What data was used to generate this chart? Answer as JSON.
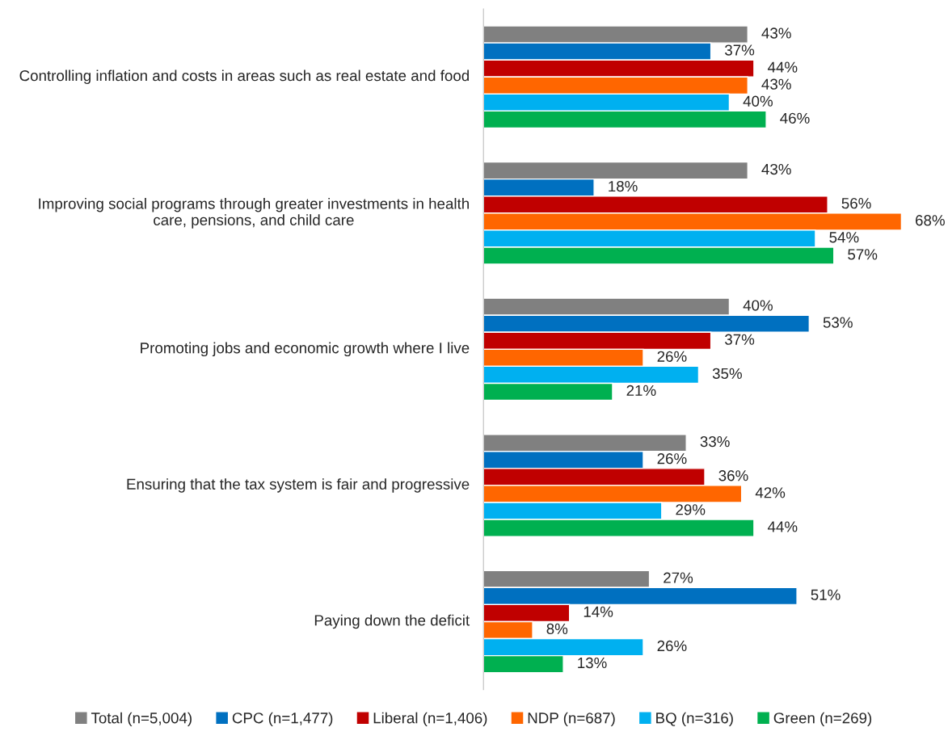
{
  "chart_data": {
    "type": "bar",
    "orientation": "horizontal",
    "tick_labels": "y",
    "legend": "bottom",
    "categories": [
      "Controlling inflation and costs in areas such as real estate and food",
      "Improving social programs through greater investments in health care, pensions, and child care",
      "Promoting jobs and economic growth where I live",
      "Ensuring that the tax system is fair and progressive",
      "Paying down the deficit"
    ],
    "series": [
      {
        "name": "Total (n=5,004)",
        "color": "#808080",
        "values": [
          43,
          43,
          40,
          33,
          27
        ],
        "value_labels": [
          "43%",
          "43%",
          "40%",
          "33%",
          "27%"
        ]
      },
      {
        "name": "CPC (n=1,477)",
        "color": "#0070c0",
        "values": [
          37,
          18,
          53,
          26,
          51
        ],
        "value_labels": [
          "37%",
          "18%",
          "53%",
          "26%",
          "51%"
        ]
      },
      {
        "name": "Liberal (n=1,406)",
        "color": "#c00000",
        "values": [
          44,
          56,
          37,
          36,
          14
        ],
        "value_labels": [
          "44%",
          "56%",
          "37%",
          "36%",
          "14%"
        ]
      },
      {
        "name": "NDP (n=687)",
        "color": "#ff6600",
        "values": [
          43,
          68,
          26,
          42,
          8
        ],
        "value_labels": [
          "43%",
          "68%",
          "26%",
          "42%",
          "8%"
        ]
      },
      {
        "name": "BQ (n=316)",
        "color": "#00b0f0",
        "values": [
          40,
          54,
          35,
          29,
          26
        ],
        "value_labels": [
          "40%",
          "54%",
          "35%",
          "29%",
          "26%"
        ]
      },
      {
        "name": "Green (n=269)",
        "color": "#00b050",
        "values": [
          46,
          57,
          21,
          44,
          13
        ],
        "value_labels": [
          "46%",
          "57%",
          "21%",
          "44%",
          "13%"
        ]
      }
    ]
  }
}
